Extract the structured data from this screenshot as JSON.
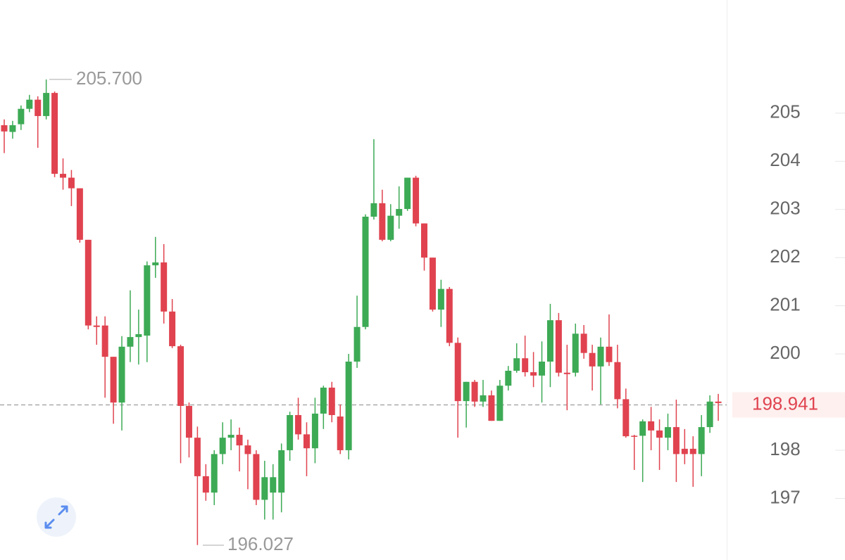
{
  "chart_data": {
    "type": "candlestick",
    "open": [
      204.75,
      204.61,
      204.77,
      205.09,
      205.28,
      204.94,
      205.42,
      203.74,
      203.66,
      203.44,
      202.37,
      200.59,
      200.59,
      199.94,
      198.99,
      200.15,
      200.35,
      200.38,
      201.84,
      201.9,
      200.88,
      200.16,
      198.92,
      198.26,
      197.46,
      197.12,
      197.92,
      198.26,
      198.32,
      198.1,
      197.92,
      196.97,
      197.12,
      197.12,
      198.0,
      198.73,
      198.33,
      198.04,
      198.76,
      199.3,
      198.7,
      198.0,
      199.84,
      200.56,
      202.85,
      203.13,
      202.37,
      202.87,
      203.01,
      203.66,
      202.71,
      202.0,
      200.92,
      201.35,
      200.23,
      199.02,
      199.42,
      199.01,
      199.14,
      198.61,
      199.34,
      199.65,
      199.91,
      199.62,
      199.55,
      199.84,
      200.7,
      199.61,
      199.61,
      200.42,
      200.02,
      199.74,
      200.15,
      199.83,
      199.06,
      198.3,
      198.3,
      198.6,
      198.41,
      198.26,
      198.48,
      198.03,
      198.03,
      197.92,
      198.48,
      199.01
    ],
    "high": [
      204.87,
      204.84,
      205.16,
      205.38,
      205.35,
      205.7,
      205.45,
      204.06,
      203.82,
      203.44,
      202.37,
      200.78,
      200.78,
      199.94,
      200.37,
      201.32,
      200.92,
      201.92,
      202.43,
      202.28,
      201.14,
      200.19,
      198.99,
      198.49,
      197.71,
      198.0,
      198.58,
      198.64,
      198.47,
      198.22,
      198.0,
      197.78,
      197.71,
      198.14,
      198.8,
      199.09,
      198.58,
      199.09,
      199.34,
      199.42,
      198.95,
      200.0,
      201.21,
      202.9,
      204.46,
      203.41,
      203.11,
      203.48,
      203.66,
      203.7,
      202.71,
      202.0,
      201.54,
      201.39,
      200.34,
      199.42,
      199.46,
      199.46,
      199.24,
      199.46,
      199.75,
      200.22,
      200.38,
      200.04,
      200.26,
      201.04,
      200.85,
      200.19,
      200.63,
      200.6,
      200.19,
      200.34,
      200.82,
      200.19,
      199.28,
      198.32,
      198.64,
      198.9,
      198.64,
      198.76,
      199.05,
      198.44,
      198.29,
      198.73,
      199.14,
      199.17
    ],
    "low": [
      204.17,
      204.47,
      204.65,
      205.02,
      204.28,
      204.87,
      203.67,
      203.41,
      203.07,
      202.31,
      200.51,
      200.19,
      199.09,
      198.55,
      198.41,
      199.83,
      199.78,
      199.83,
      201.58,
      200.63,
      200.12,
      197.73,
      197.85,
      196.03,
      196.95,
      196.86,
      197.71,
      198.0,
      197.56,
      197.19,
      196.86,
      196.56,
      196.56,
      196.71,
      197.78,
      198.22,
      197.46,
      197.73,
      198.44,
      198.58,
      197.92,
      197.81,
      199.71,
      200.51,
      202.79,
      202.34,
      202.34,
      202.6,
      202.97,
      202.65,
      201.73,
      200.88,
      200.56,
      200.16,
      198.26,
      198.47,
      198.9,
      198.9,
      198.61,
      198.61,
      199.24,
      199.61,
      199.53,
      199.31,
      198.99,
      199.31,
      199.53,
      198.83,
      199.53,
      199.9,
      199.24,
      198.95,
      199.75,
      198.87,
      198.26,
      197.59,
      197.34,
      198.0,
      197.59,
      198.0,
      197.34,
      197.71,
      197.24,
      197.46,
      198.36,
      198.61
    ],
    "close": [
      204.62,
      204.75,
      205.09,
      205.28,
      204.94,
      205.42,
      203.74,
      203.66,
      203.44,
      202.37,
      200.59,
      200.56,
      199.94,
      198.99,
      200.15,
      200.35,
      200.41,
      201.84,
      201.9,
      200.88,
      200.16,
      198.92,
      198.26,
      197.46,
      197.12,
      197.92,
      198.26,
      198.32,
      198.1,
      197.92,
      196.97,
      197.44,
      197.44,
      198.0,
      198.73,
      198.33,
      198.04,
      198.76,
      199.3,
      198.73,
      198.0,
      199.84,
      200.56,
      202.85,
      203.13,
      202.37,
      202.87,
      203.01,
      203.66,
      202.71,
      202.0,
      200.92,
      201.35,
      200.23,
      199.02,
      199.42,
      199.01,
      199.14,
      198.61,
      199.34,
      199.65,
      199.91,
      199.62,
      199.55,
      199.84,
      200.7,
      199.61,
      199.58,
      200.42,
      200.02,
      199.74,
      200.15,
      199.83,
      199.06,
      198.29,
      198.29,
      198.6,
      198.41,
      198.26,
      198.48,
      197.92,
      197.92,
      197.92,
      198.48,
      199.01,
      198.98
    ],
    "up_color": "#3daa55",
    "down_color": "#e0434f",
    "ylim": [
      195.72,
      207.35
    ],
    "yticks": [
      197,
      198,
      200,
      201,
      202,
      203,
      204,
      205
    ],
    "current_price": 198.941,
    "high_marker": {
      "value": 205.7,
      "label": "205.700"
    },
    "low_marker": {
      "value": 196.027,
      "label": "196.027"
    }
  }
}
